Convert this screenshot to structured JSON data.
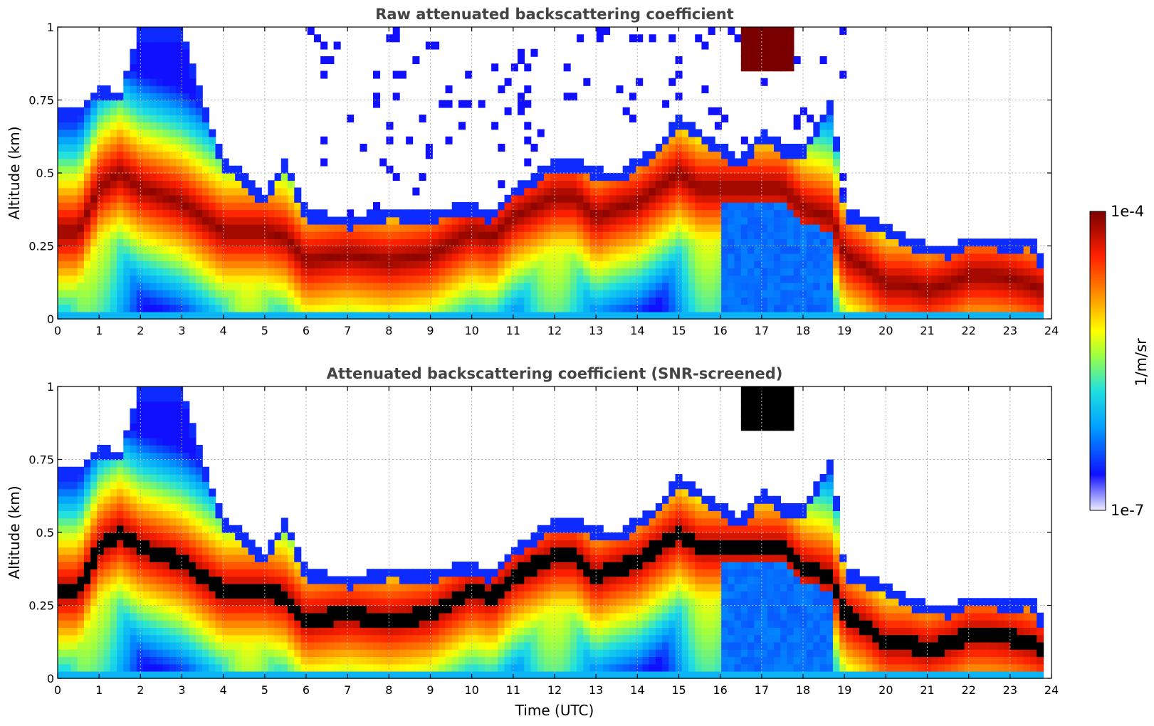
{
  "chart_data": [
    {
      "type": "heatmap",
      "title": "Raw attenuated backscattering coefficient",
      "xlabel": "",
      "ylabel": "Altitude (km)",
      "xlim": [
        0,
        24
      ],
      "ylim": [
        0,
        1
      ],
      "xticks": [
        "0",
        "1",
        "2",
        "3",
        "4",
        "5",
        "6",
        "7",
        "8",
        "9",
        "10",
        "11",
        "12",
        "13",
        "14",
        "15",
        "16",
        "17",
        "18",
        "19",
        "20",
        "21",
        "22",
        "23",
        "24"
      ],
      "yticks": [
        "0",
        "0.25",
        "0.5",
        "0.75",
        "1"
      ],
      "ytick_values": [
        0,
        0.25,
        0.5,
        0.75,
        1
      ],
      "grid": true,
      "screened": false,
      "signal_top_km": [
        [
          0,
          0.72
        ],
        [
          0.5,
          0.72
        ],
        [
          1,
          0.8
        ],
        [
          1.5,
          0.78
        ],
        [
          2,
          1.0
        ],
        [
          3,
          1.0
        ],
        [
          3.5,
          0.75
        ],
        [
          4,
          0.55
        ],
        [
          4.5,
          0.5
        ],
        [
          5,
          0.43
        ],
        [
          5.5,
          0.55
        ],
        [
          6,
          0.38
        ],
        [
          7,
          0.35
        ],
        [
          8,
          0.38
        ],
        [
          9,
          0.37
        ],
        [
          10,
          0.4
        ],
        [
          10.5,
          0.37
        ],
        [
          11,
          0.45
        ],
        [
          12,
          0.55
        ],
        [
          12.5,
          0.55
        ],
        [
          13,
          0.52
        ],
        [
          13.5,
          0.5
        ],
        [
          14,
          0.55
        ],
        [
          14.5,
          0.6
        ],
        [
          15,
          0.7
        ],
        [
          15.5,
          0.65
        ],
        [
          16,
          0.6
        ],
        [
          16.5,
          0.55
        ],
        [
          17,
          0.65
        ],
        [
          17.5,
          0.6
        ],
        [
          18,
          0.6
        ],
        [
          18.7,
          0.75
        ],
        [
          19,
          0.38
        ],
        [
          19.5,
          0.35
        ],
        [
          20,
          0.33
        ],
        [
          20.5,
          0.28
        ],
        [
          21,
          0.26
        ],
        [
          21.5,
          0.25
        ],
        [
          22,
          0.28
        ],
        [
          22.5,
          0.28
        ],
        [
          23,
          0.27
        ],
        [
          23.5,
          0.28
        ],
        [
          23.8,
          0.2
        ]
      ],
      "layer_center_km": [
        [
          0,
          0.3
        ],
        [
          0.5,
          0.3
        ],
        [
          1,
          0.45
        ],
        [
          1.5,
          0.5
        ],
        [
          2,
          0.45
        ],
        [
          3,
          0.4
        ],
        [
          3.5,
          0.35
        ],
        [
          4,
          0.3
        ],
        [
          4.5,
          0.3
        ],
        [
          5,
          0.3
        ],
        [
          5.5,
          0.28
        ],
        [
          6,
          0.2
        ],
        [
          7,
          0.22
        ],
        [
          8,
          0.2
        ],
        [
          9,
          0.22
        ],
        [
          10,
          0.3
        ],
        [
          10.5,
          0.28
        ],
        [
          11,
          0.35
        ],
        [
          12,
          0.42
        ],
        [
          12.5,
          0.42
        ],
        [
          13,
          0.35
        ],
        [
          13.5,
          0.38
        ],
        [
          14,
          0.4
        ],
        [
          14.5,
          0.45
        ],
        [
          15,
          0.5
        ],
        [
          15.5,
          0.45
        ],
        [
          16,
          0.45
        ],
        [
          16.5,
          0.45
        ],
        [
          17,
          0.45
        ],
        [
          17.5,
          0.45
        ],
        [
          18,
          0.38
        ],
        [
          18.7,
          0.35
        ],
        [
          19,
          0.22
        ],
        [
          19.5,
          0.18
        ],
        [
          20,
          0.12
        ],
        [
          20.5,
          0.12
        ],
        [
          21,
          0.1
        ],
        [
          21.5,
          0.12
        ],
        [
          22,
          0.15
        ],
        [
          22.5,
          0.15
        ],
        [
          23,
          0.14
        ],
        [
          23.5,
          0.12
        ],
        [
          23.8,
          0.1
        ]
      ],
      "high_cloud_km": {
        "t_start": 16.5,
        "t_end": 17.8,
        "bottom_km": 0.85
      }
    },
    {
      "type": "heatmap",
      "title": "Attenuated backscattering coefficient (SNR-screened)",
      "xlabel": "Time (UTC)",
      "ylabel": "Altitude (km)",
      "xlim": [
        0,
        24
      ],
      "ylim": [
        0,
        1
      ],
      "xticks": [
        "0",
        "1",
        "2",
        "3",
        "4",
        "5",
        "6",
        "7",
        "8",
        "9",
        "10",
        "11",
        "12",
        "13",
        "14",
        "15",
        "16",
        "17",
        "18",
        "19",
        "20",
        "21",
        "22",
        "23",
        "24"
      ],
      "yticks": [
        "0",
        "0.25",
        "0.5",
        "0.75",
        "1"
      ],
      "ytick_values": [
        0,
        0.25,
        0.5,
        0.75,
        1
      ],
      "grid": true,
      "screened": true
    }
  ],
  "colorbar": {
    "label": "1/m/sr",
    "max_label": "1e-4",
    "min_label": "1e-7",
    "scale": "log",
    "colors": [
      "#eeeeff",
      "#1010ff",
      "#00b0ff",
      "#30e0c0",
      "#a0ff40",
      "#ffff00",
      "#ff9000",
      "#ff2000",
      "#7a0000"
    ]
  }
}
